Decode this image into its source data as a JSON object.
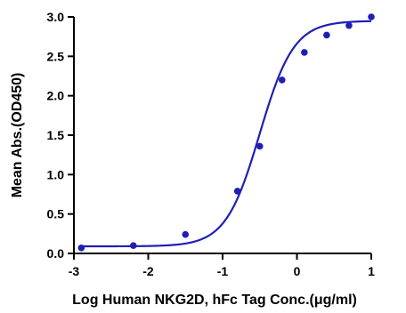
{
  "chart_data": {
    "type": "scatter",
    "title": "",
    "xlabel": "Log Human NKG2D, hFc Tag Conc.(μg/ml)",
    "ylabel": "Mean Abs.(OD450)",
    "xlim": [
      -3,
      1
    ],
    "ylim": [
      0,
      3.0
    ],
    "x_ticks": [
      "-3",
      "-2",
      "-1",
      "0",
      "1"
    ],
    "y_ticks": [
      "0.0",
      "0.5",
      "1.0",
      "1.5",
      "2.0",
      "2.5",
      "3.0"
    ],
    "grid": false,
    "series": [
      {
        "color": "#1f1fb4",
        "points": [
          {
            "x": -2.9,
            "y": 0.07
          },
          {
            "x": -2.2,
            "y": 0.1
          },
          {
            "x": -1.5,
            "y": 0.24
          },
          {
            "x": -0.8,
            "y": 0.79
          },
          {
            "x": -0.5,
            "y": 1.36
          },
          {
            "x": -0.2,
            "y": 2.2
          },
          {
            "x": 0.1,
            "y": 2.55
          },
          {
            "x": 0.4,
            "y": 2.77
          },
          {
            "x": 0.7,
            "y": 2.89
          },
          {
            "x": 1.0,
            "y": 3.0
          }
        ],
        "fit": {
          "model": "four-parameter logistic",
          "bottom": 0.09,
          "top": 2.95,
          "log_ec50": -0.5,
          "hill_slope": 1.9,
          "x_range": [
            -2.9,
            1.0
          ]
        }
      }
    ]
  }
}
